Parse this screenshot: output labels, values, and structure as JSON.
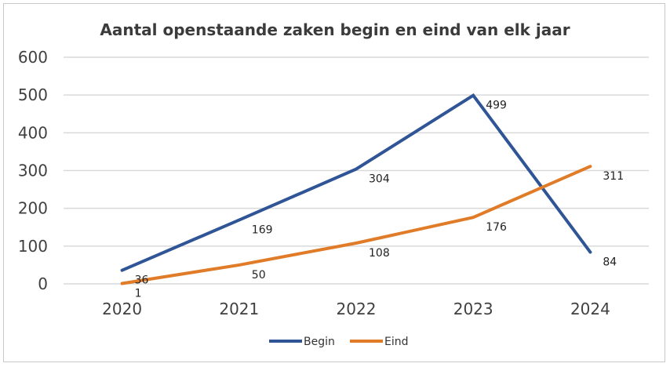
{
  "chart_data": {
    "type": "line",
    "title": "Aantal openstaande zaken begin en eind van elk jaar",
    "categories": [
      "2020",
      "2021",
      "2022",
      "2023",
      "2024"
    ],
    "yticks": [
      "0",
      "100",
      "200",
      "300",
      "400",
      "500",
      "600"
    ],
    "ylim": [
      0,
      600
    ],
    "grid": true,
    "legend_position": "bottom",
    "series": [
      {
        "name": "Begin",
        "color": "#2f5597",
        "values": [
          36,
          169,
          304,
          499,
          84
        ],
        "labels": [
          "36",
          "169",
          "304",
          "499",
          "84"
        ]
      },
      {
        "name": "Eind",
        "color": "#e07b28",
        "values": [
          1,
          50,
          108,
          176,
          311
        ],
        "labels": [
          "1",
          "50",
          "108",
          "176",
          "311"
        ]
      }
    ]
  }
}
